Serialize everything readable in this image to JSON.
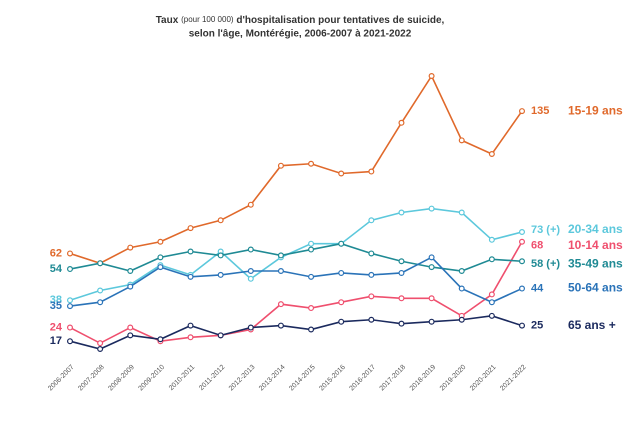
{
  "chart_data": {
    "type": "line",
    "title": [
      "Taux",
      "(pour 100 000)",
      "d'hospitalisation pour tentatives de suicide,",
      "selon l'âge, Montérégie, 2006-2007 à 2021-2022"
    ],
    "categories": [
      "2006-2007",
      "2007-2008",
      "2008-2009",
      "2009-2010",
      "2010-2011",
      "2011-2012",
      "2012-2013",
      "2013-2014",
      "2014-2015",
      "2015-2016",
      "2016-2017",
      "2017-2018",
      "2018-2019",
      "2019-2020",
      "2020-2021",
      "2021-2022"
    ],
    "series": [
      {
        "name": "15-19 ans",
        "color": "#e0692b",
        "values": [
          62,
          57,
          65,
          68,
          75,
          79,
          87,
          107,
          108,
          103,
          104,
          129,
          153,
          120,
          113,
          135
        ]
      },
      {
        "name": "20-34 ans",
        "color": "#5cc8dc",
        "values": [
          38,
          43,
          46,
          56,
          51,
          63,
          49,
          60,
          67,
          67,
          79,
          83,
          85,
          83,
          69,
          73
        ],
        "value_labels": [
          null,
          null,
          null,
          null,
          null,
          null,
          null,
          null,
          null,
          null,
          null,
          null,
          null,
          null,
          null,
          "73 (+)"
        ]
      },
      {
        "name": "10-14 ans",
        "color": "#ef4f6e",
        "values": [
          24,
          16,
          24,
          17,
          19,
          20,
          23,
          36,
          34,
          37,
          40,
          39,
          39,
          30,
          41,
          68
        ]
      },
      {
        "name": "35-49 ans",
        "color": "#1f8a94",
        "values": [
          54,
          57,
          53,
          60,
          63,
          61,
          64,
          61,
          64,
          67,
          62,
          58,
          55,
          53,
          59,
          58
        ],
        "value_labels": [
          null,
          null,
          null,
          null,
          null,
          null,
          null,
          null,
          null,
          null,
          null,
          null,
          null,
          null,
          null,
          "58 (+)"
        ]
      },
      {
        "name": "50-64 ans",
        "color": "#2a73b8",
        "values": [
          35,
          37,
          45,
          55,
          50,
          51,
          53,
          53,
          50,
          52,
          51,
          52,
          60,
          44,
          37,
          44
        ]
      },
      {
        "name": "65 ans +",
        "color": "#1b2a5e",
        "values": [
          17,
          13,
          20,
          18,
          25,
          20,
          24,
          25,
          23,
          27,
          28,
          26,
          27,
          28,
          30,
          25
        ]
      }
    ]
  }
}
